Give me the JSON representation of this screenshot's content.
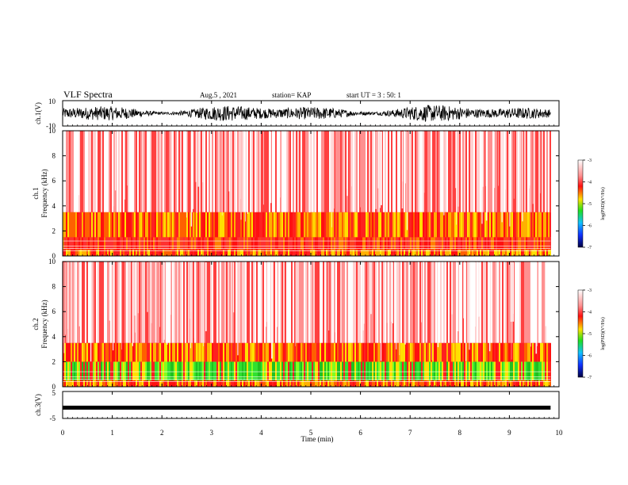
{
  "header": {
    "title": "VLF Spectra",
    "date": "Aug.5 , 2021",
    "station": "station= KAP",
    "start": "start UT = 3 : 50: 1"
  },
  "colors": {
    "spectro_low": "#ffffff",
    "spectro_mid": "#ff2020",
    "spectro_high": "#ffe000",
    "spectro_peak": "#30e030",
    "trace": "#000000"
  },
  "chart_data": [
    {
      "type": "line",
      "panel": "ch1-waveform",
      "ylabel": "ch.1(V)",
      "ylim": [
        -10,
        10
      ],
      "yticks": [
        "10",
        "-10"
      ],
      "xlim": [
        0,
        10
      ],
      "description_values": {
        "amplitude_approx": [
          -5,
          5
        ]
      }
    },
    {
      "type": "heatmap",
      "panel": "ch1-spectrogram",
      "ylabel_top": "ch.1",
      "ylabel": "Frequency (kHz)",
      "ylim": [
        0,
        10
      ],
      "yticks": [
        "0",
        "2",
        "4",
        "6",
        "8",
        "10"
      ],
      "xlim": [
        0,
        9.83
      ],
      "bands": [
        {
          "from": 0,
          "to": 0.5,
          "level": "high"
        },
        {
          "from": 0.5,
          "to": 1.5,
          "level": "mid"
        },
        {
          "from": 1.5,
          "to": 3.5,
          "level": "high"
        },
        {
          "from": 3.5,
          "to": 10,
          "level": "low"
        }
      ],
      "colorbar": {
        "label": "log(PSD)(V²/Hz)",
        "range": [
          -7,
          -3
        ],
        "ticks": [
          "-3",
          "-4",
          "-5",
          "-6",
          "-7"
        ]
      }
    },
    {
      "type": "heatmap",
      "panel": "ch2-spectrogram",
      "ylabel_top": "ch.2",
      "ylabel": "Frequency (kHz)",
      "ylim": [
        0,
        10
      ],
      "yticks": [
        "0",
        "2",
        "4",
        "6",
        "8",
        "10"
      ],
      "xlim": [
        0,
        9.83
      ],
      "bands": [
        {
          "from": 0,
          "to": 0.5,
          "level": "high"
        },
        {
          "from": 0.5,
          "to": 2.0,
          "level": "peak"
        },
        {
          "from": 2.0,
          "to": 3.5,
          "level": "high"
        },
        {
          "from": 3.5,
          "to": 10,
          "level": "low"
        }
      ],
      "colorbar": {
        "label": "log(PSD)(V²/Hz)",
        "range": [
          -7,
          -3
        ],
        "ticks": [
          "-3",
          "-4",
          "-5",
          "-6",
          "-7"
        ]
      }
    },
    {
      "type": "line",
      "panel": "ch3-waveform",
      "ylabel": "ch.3(V)",
      "ylim": [
        -5,
        5
      ],
      "yticks": [
        "5",
        "-5"
      ],
      "xlim": [
        0,
        10
      ],
      "description_values": {
        "level_approx": -1
      }
    }
  ],
  "xaxis": {
    "label": "Time (min)",
    "ticks": [
      "0",
      "1",
      "2",
      "3",
      "4",
      "5",
      "6",
      "7",
      "8",
      "9",
      "10"
    ]
  }
}
